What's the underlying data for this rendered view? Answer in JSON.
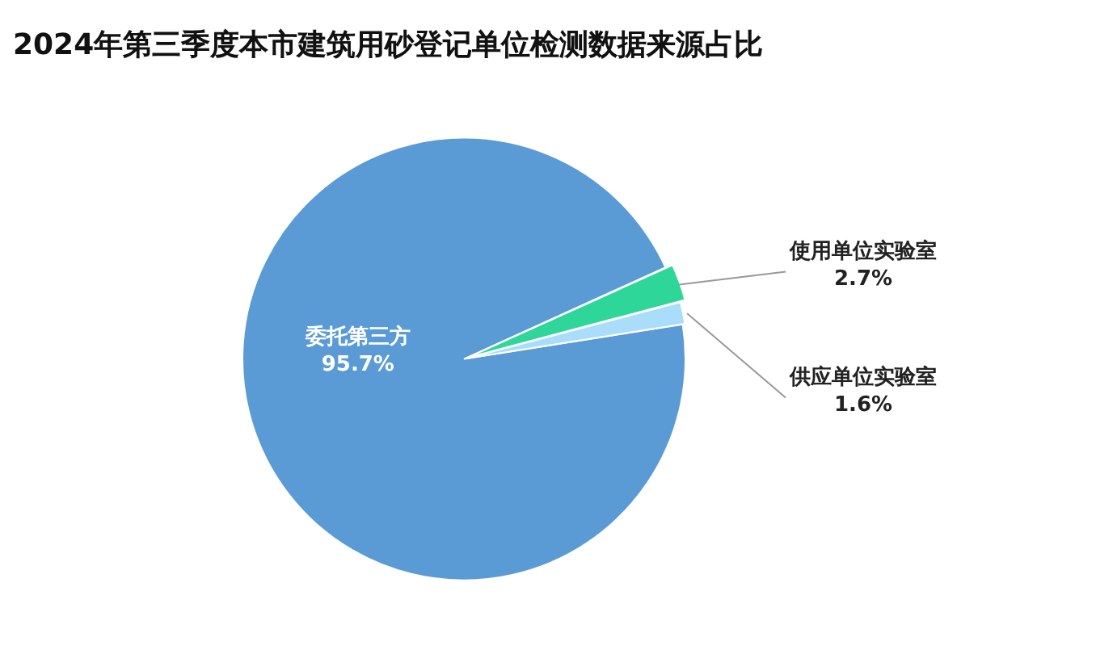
{
  "chart_data": {
    "type": "pie",
    "title": "2024年第三季度本市建筑用砂登记单位检测数据来源占比",
    "categories": [
      "委托第三方",
      "使用单位实验室",
      "供应单位实验室"
    ],
    "values": [
      95.7,
      2.7,
      1.6
    ],
    "colors": [
      "#5b9bd5",
      "#2fd69a",
      "#a9ddf9"
    ],
    "legend": false,
    "value_labels": [
      "95.7%",
      "2.7%",
      "1.6%"
    ]
  }
}
